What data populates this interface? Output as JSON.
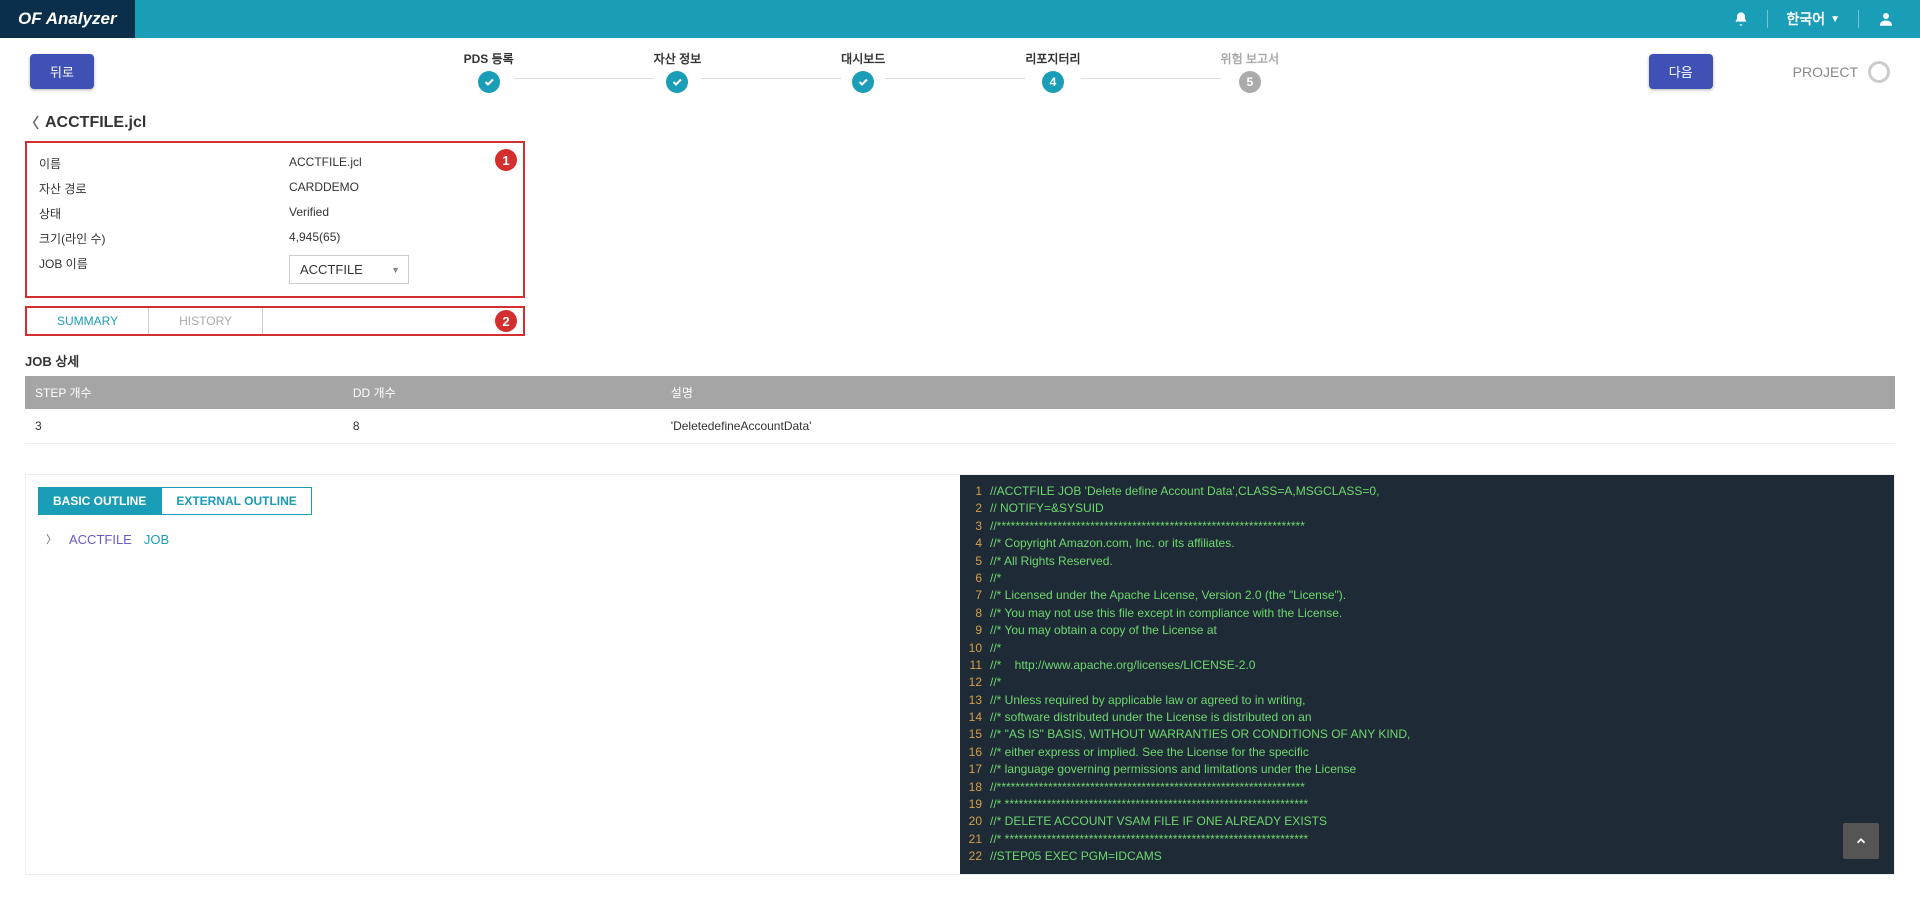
{
  "header": {
    "logo": "OF Analyzer",
    "language": "한국어"
  },
  "nav": {
    "back_label": "뒤로",
    "next_label": "다음",
    "project_label": "PROJECT",
    "steps": [
      {
        "label": "PDS 등록",
        "state": "done"
      },
      {
        "label": "자산 정보",
        "state": "done"
      },
      {
        "label": "대시보드",
        "state": "done"
      },
      {
        "label": "리포지터리",
        "state": "num",
        "num": "4"
      },
      {
        "label": "위험 보고서",
        "state": "gray",
        "num": "5"
      }
    ]
  },
  "breadcrumb": {
    "title": "ACCTFILE.jcl"
  },
  "info": {
    "badge": "1",
    "rows": {
      "name_label": "이름",
      "name_value": "ACCTFILE.jcl",
      "path_label": "자산 경로",
      "path_value": "CARDDEMO",
      "status_label": "상태",
      "status_value": "Verified",
      "size_label": "크기(라인 수)",
      "size_value": "4,945(65)",
      "job_label": "JOB 이름",
      "job_value": "ACCTFILE"
    }
  },
  "tabs": {
    "badge": "2",
    "summary": "SUMMARY",
    "history": "HISTORY"
  },
  "job_detail": {
    "title": "JOB 상세",
    "headers": {
      "step": "STEP 개수",
      "dd": "DD 개수",
      "desc": "설명"
    },
    "row": {
      "step": "3",
      "dd": "8",
      "desc": "'DeletedefineAccountData'"
    }
  },
  "outline": {
    "basic_tab": "BASIC OUTLINE",
    "external_tab": "EXTERNAL OUTLINE",
    "item1": "ACCTFILE",
    "item2": "JOB"
  },
  "code": {
    "lines": [
      "//ACCTFILE JOB 'Delete define Account Data',CLASS=A,MSGCLASS=0,",
      "// NOTIFY=&SYSUID",
      "//******************************************************************",
      "//* Copyright Amazon.com, Inc. or its affiliates.",
      "//* All Rights Reserved.",
      "//*",
      "//* Licensed under the Apache License, Version 2.0 (the \"License\").",
      "//* You may not use this file except in compliance with the License.",
      "//* You may obtain a copy of the License at",
      "//*",
      "//*    http://www.apache.org/licenses/LICENSE-2.0",
      "//*",
      "//* Unless required by applicable law or agreed to in writing,",
      "//* software distributed under the License is distributed on an",
      "//* \"AS IS\" BASIS, WITHOUT WARRANTIES OR CONDITIONS OF ANY KIND,",
      "//* either express or implied. See the License for the specific",
      "//* language governing permissions and limitations under the License",
      "//******************************************************************",
      "//* *****************************************************************",
      "//* DELETE ACCOUNT VSAM FILE IF ONE ALREADY EXISTS",
      "//* *****************************************************************",
      "//STEP05 EXEC PGM=IDCAMS"
    ]
  }
}
